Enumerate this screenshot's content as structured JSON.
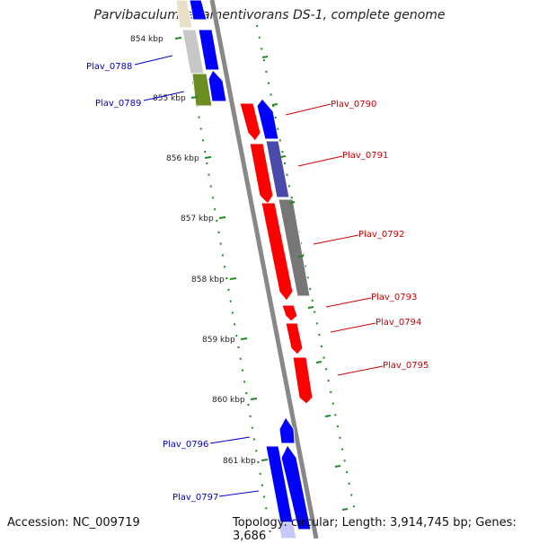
{
  "title": "Parvibaculum lavamentivorans DS-1, complete genome",
  "accession": "Accession: NC_009719",
  "summary": "Topology: circular; Length: 3,914,745 bp; Genes: 3,686",
  "scale_labels": [
    "854 kbp",
    "855 kbp",
    "856 kbp",
    "857 kbp",
    "858 kbp",
    "859 kbp",
    "860 kbp",
    "861 kbp"
  ],
  "genes_left": [
    "Plav_0788",
    "Plav_0789",
    "Plav_0796",
    "Plav_0797"
  ],
  "genes_right": [
    "Plav_0790",
    "Plav_0791",
    "Plav_0792",
    "Plav_0793",
    "Plav_0794",
    "Plav_0795"
  ],
  "colors": {
    "forward": "#ff0000",
    "reverse": "#0000ff",
    "left_label": "#0000cc",
    "right_label": "#cc0000",
    "backbone": "#888888",
    "tick": "#228822"
  }
}
